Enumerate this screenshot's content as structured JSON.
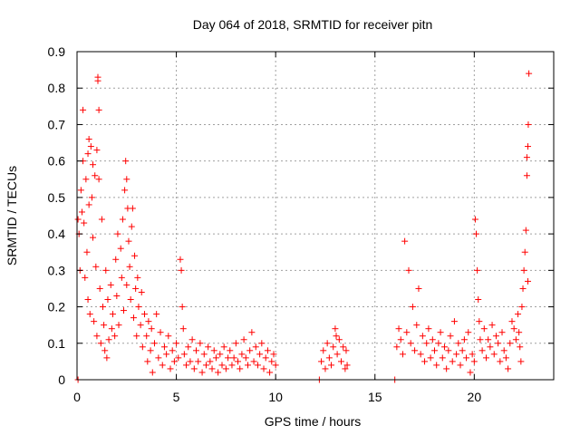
{
  "chart_data": {
    "type": "scatter",
    "title": "Day 064 of 2018, SRMTID for receiver pitn",
    "xlabel": "GPS time / hours",
    "ylabel": "SRMTID / TECUs",
    "xlim": [
      0,
      24
    ],
    "ylim": [
      0,
      0.9
    ],
    "xticks": [
      0,
      5,
      10,
      15,
      20
    ],
    "xtick_labels": [
      "0",
      "5",
      "10",
      "15",
      "20"
    ],
    "yticks": [
      0,
      0.1,
      0.2,
      0.3,
      0.4,
      0.5,
      0.6,
      0.7,
      0.8,
      0.9
    ],
    "ytick_labels": [
      "0",
      "0.1",
      "0.2",
      "0.3",
      "0.4",
      "0.5",
      "0.6",
      "0.7",
      "0.8",
      "0.9"
    ],
    "grid": true,
    "marker": "+",
    "series": [
      {
        "name": "SRMTID",
        "color": "#ff0000",
        "points": [
          [
            0.05,
            0.0
          ],
          [
            0.05,
            0.44
          ],
          [
            0.1,
            0.4
          ],
          [
            0.15,
            0.3
          ],
          [
            0.2,
            0.52
          ],
          [
            0.25,
            0.46
          ],
          [
            0.3,
            0.6
          ],
          [
            0.3,
            0.74
          ],
          [
            0.35,
            0.43
          ],
          [
            0.4,
            0.28
          ],
          [
            0.45,
            0.55
          ],
          [
            0.5,
            0.35
          ],
          [
            0.55,
            0.22
          ],
          [
            0.55,
            0.62
          ],
          [
            0.6,
            0.48
          ],
          [
            0.6,
            0.66
          ],
          [
            0.65,
            0.18
          ],
          [
            0.7,
            0.64
          ],
          [
            0.75,
            0.5
          ],
          [
            0.8,
            0.39
          ],
          [
            0.8,
            0.59
          ],
          [
            0.85,
            0.16
          ],
          [
            0.9,
            0.56
          ],
          [
            0.95,
            0.31
          ],
          [
            1.0,
            0.63
          ],
          [
            1.0,
            0.12
          ],
          [
            1.05,
            0.83
          ],
          [
            1.05,
            0.82
          ],
          [
            1.1,
            0.74
          ],
          [
            1.1,
            0.55
          ],
          [
            1.15,
            0.25
          ],
          [
            1.2,
            0.1
          ],
          [
            1.25,
            0.44
          ],
          [
            1.3,
            0.2
          ],
          [
            1.35,
            0.15
          ],
          [
            1.4,
            0.08
          ],
          [
            1.45,
            0.3
          ],
          [
            1.5,
            0.06
          ],
          [
            1.55,
            0.22
          ],
          [
            1.6,
            0.11
          ],
          [
            1.7,
            0.26
          ],
          [
            1.75,
            0.14
          ],
          [
            1.8,
            0.18
          ],
          [
            1.9,
            0.12
          ],
          [
            1.95,
            0.33
          ],
          [
            2.0,
            0.23
          ],
          [
            2.05,
            0.4
          ],
          [
            2.1,
            0.15
          ],
          [
            2.2,
            0.36
          ],
          [
            2.25,
            0.28
          ],
          [
            2.3,
            0.44
          ],
          [
            2.35,
            0.19
          ],
          [
            2.4,
            0.52
          ],
          [
            2.45,
            0.6
          ],
          [
            2.5,
            0.55
          ],
          [
            2.5,
            0.26
          ],
          [
            2.55,
            0.47
          ],
          [
            2.6,
            0.38
          ],
          [
            2.65,
            0.31
          ],
          [
            2.7,
            0.22
          ],
          [
            2.75,
            0.42
          ],
          [
            2.8,
            0.47
          ],
          [
            2.85,
            0.17
          ],
          [
            2.9,
            0.34
          ],
          [
            2.95,
            0.25
          ],
          [
            3.0,
            0.12
          ],
          [
            3.05,
            0.28
          ],
          [
            3.1,
            0.2
          ],
          [
            3.2,
            0.15
          ],
          [
            3.25,
            0.24
          ],
          [
            3.3,
            0.09
          ],
          [
            3.4,
            0.18
          ],
          [
            3.5,
            0.12
          ],
          [
            3.55,
            0.05
          ],
          [
            3.6,
            0.16
          ],
          [
            3.7,
            0.08
          ],
          [
            3.75,
            0.14
          ],
          [
            3.8,
            0.02
          ],
          [
            3.9,
            0.1
          ],
          [
            4.0,
            0.18
          ],
          [
            4.1,
            0.06
          ],
          [
            4.2,
            0.13
          ],
          [
            4.3,
            0.04
          ],
          [
            4.4,
            0.09
          ],
          [
            4.5,
            0.07
          ],
          [
            4.6,
            0.12
          ],
          [
            4.7,
            0.03
          ],
          [
            4.8,
            0.08
          ],
          [
            4.9,
            0.05
          ],
          [
            5.0,
            0.1
          ],
          [
            5.1,
            0.06
          ],
          [
            5.2,
            0.33
          ],
          [
            5.25,
            0.3
          ],
          [
            5.3,
            0.2
          ],
          [
            5.35,
            0.14
          ],
          [
            5.4,
            0.07
          ],
          [
            5.5,
            0.04
          ],
          [
            5.6,
            0.09
          ],
          [
            5.7,
            0.05
          ],
          [
            5.8,
            0.11
          ],
          [
            5.9,
            0.03
          ],
          [
            6.0,
            0.08
          ],
          [
            6.1,
            0.05
          ],
          [
            6.2,
            0.1
          ],
          [
            6.3,
            0.02
          ],
          [
            6.4,
            0.07
          ],
          [
            6.5,
            0.04
          ],
          [
            6.6,
            0.09
          ],
          [
            6.7,
            0.05
          ],
          [
            6.8,
            0.03
          ],
          [
            6.9,
            0.08
          ],
          [
            7.0,
            0.06
          ],
          [
            7.1,
            0.02
          ],
          [
            7.2,
            0.07
          ],
          [
            7.3,
            0.04
          ],
          [
            7.4,
            0.09
          ],
          [
            7.5,
            0.03
          ],
          [
            7.6,
            0.06
          ],
          [
            7.7,
            0.08
          ],
          [
            7.8,
            0.04
          ],
          [
            7.9,
            0.06
          ],
          [
            8.0,
            0.1
          ],
          [
            8.1,
            0.05
          ],
          [
            8.2,
            0.03
          ],
          [
            8.3,
            0.07
          ],
          [
            8.4,
            0.11
          ],
          [
            8.5,
            0.06
          ],
          [
            8.6,
            0.04
          ],
          [
            8.7,
            0.08
          ],
          [
            8.8,
            0.13
          ],
          [
            8.9,
            0.05
          ],
          [
            9.0,
            0.09
          ],
          [
            9.1,
            0.04
          ],
          [
            9.2,
            0.07
          ],
          [
            9.3,
            0.1
          ],
          [
            9.4,
            0.03
          ],
          [
            9.5,
            0.06
          ],
          [
            9.6,
            0.08
          ],
          [
            9.7,
            0.02
          ],
          [
            9.8,
            0.05
          ],
          [
            9.9,
            0.07
          ],
          [
            10.0,
            0.04
          ],
          [
            12.2,
            0.0
          ],
          [
            12.3,
            0.05
          ],
          [
            12.4,
            0.08
          ],
          [
            12.5,
            0.03
          ],
          [
            12.6,
            0.1
          ],
          [
            12.7,
            0.06
          ],
          [
            12.8,
            0.04
          ],
          [
            12.9,
            0.09
          ],
          [
            13.0,
            0.14
          ],
          [
            13.05,
            0.12
          ],
          [
            13.1,
            0.07
          ],
          [
            13.2,
            0.11
          ],
          [
            13.3,
            0.05
          ],
          [
            13.4,
            0.09
          ],
          [
            13.5,
            0.03
          ],
          [
            13.55,
            0.08
          ],
          [
            13.6,
            0.04
          ],
          [
            16.0,
            0.0
          ],
          [
            16.1,
            0.09
          ],
          [
            16.2,
            0.14
          ],
          [
            16.3,
            0.11
          ],
          [
            16.4,
            0.07
          ],
          [
            16.5,
            0.38
          ],
          [
            16.6,
            0.13
          ],
          [
            16.7,
            0.3
          ],
          [
            16.8,
            0.1
          ],
          [
            16.9,
            0.2
          ],
          [
            17.0,
            0.08
          ],
          [
            17.1,
            0.15
          ],
          [
            17.2,
            0.25
          ],
          [
            17.3,
            0.07
          ],
          [
            17.4,
            0.12
          ],
          [
            17.5,
            0.05
          ],
          [
            17.6,
            0.1
          ],
          [
            17.7,
            0.14
          ],
          [
            17.8,
            0.06
          ],
          [
            17.9,
            0.11
          ],
          [
            18.0,
            0.08
          ],
          [
            18.1,
            0.04
          ],
          [
            18.2,
            0.1
          ],
          [
            18.3,
            0.13
          ],
          [
            18.4,
            0.06
          ],
          [
            18.5,
            0.09
          ],
          [
            18.6,
            0.03
          ],
          [
            18.7,
            0.08
          ],
          [
            18.8,
            0.12
          ],
          [
            18.9,
            0.05
          ],
          [
            19.0,
            0.16
          ],
          [
            19.1,
            0.07
          ],
          [
            19.2,
            0.1
          ],
          [
            19.3,
            0.04
          ],
          [
            19.4,
            0.08
          ],
          [
            19.5,
            0.11
          ],
          [
            19.6,
            0.06
          ],
          [
            19.7,
            0.13
          ],
          [
            19.8,
            0.02
          ],
          [
            19.9,
            0.07
          ],
          [
            20.0,
            0.05
          ],
          [
            20.05,
            0.44
          ],
          [
            20.1,
            0.4
          ],
          [
            20.15,
            0.3
          ],
          [
            20.2,
            0.22
          ],
          [
            20.25,
            0.16
          ],
          [
            20.3,
            0.11
          ],
          [
            20.4,
            0.08
          ],
          [
            20.5,
            0.14
          ],
          [
            20.6,
            0.06
          ],
          [
            20.7,
            0.11
          ],
          [
            20.8,
            0.09
          ],
          [
            20.9,
            0.15
          ],
          [
            21.0,
            0.07
          ],
          [
            21.1,
            0.12
          ],
          [
            21.2,
            0.1
          ],
          [
            21.3,
            0.05
          ],
          [
            21.4,
            0.13
          ],
          [
            21.5,
            0.08
          ],
          [
            21.6,
            0.06
          ],
          [
            21.7,
            0.03
          ],
          [
            21.8,
            0.1
          ],
          [
            21.9,
            0.16
          ],
          [
            22.0,
            0.14
          ],
          [
            22.1,
            0.11
          ],
          [
            22.2,
            0.18
          ],
          [
            22.25,
            0.13
          ],
          [
            22.3,
            0.09
          ],
          [
            22.35,
            0.05
          ],
          [
            22.4,
            0.2
          ],
          [
            22.45,
            0.25
          ],
          [
            22.5,
            0.3
          ],
          [
            22.55,
            0.35
          ],
          [
            22.6,
            0.41
          ],
          [
            22.65,
            0.56
          ],
          [
            22.65,
            0.61
          ],
          [
            22.7,
            0.64
          ],
          [
            22.72,
            0.7
          ],
          [
            22.75,
            0.84
          ],
          [
            22.7,
            0.27
          ]
        ]
      }
    ]
  }
}
